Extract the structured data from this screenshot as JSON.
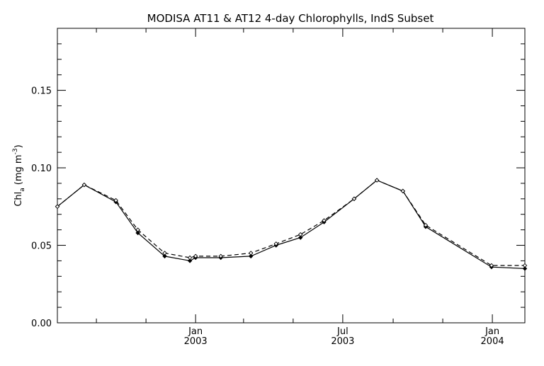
{
  "chart_data": {
    "type": "line",
    "title": "MODISA AT11 & AT12 4-day Chlorophylls, IndS Subset",
    "ylabel": "Chl",
    "ylabel_sub": "a",
    "ylabel_unit": "(mg m",
    "ylabel_sup": "-3",
    "ylabel_close": ")",
    "ylim": [
      0.0,
      0.19
    ],
    "xlim": [
      "2002-07-15",
      "2004-02-10"
    ],
    "grid": false,
    "yticks": [
      {
        "value": 0.0,
        "label": "0.00"
      },
      {
        "value": 0.05,
        "label": "0.05"
      },
      {
        "value": 0.1,
        "label": "0.10"
      },
      {
        "value": 0.15,
        "label": "0.15"
      }
    ],
    "xticks_major": [
      {
        "date": "2003-01-01",
        "month": "Jan",
        "year": "2003"
      },
      {
        "date": "2003-07-01",
        "month": "Jul",
        "year": "2003"
      },
      {
        "date": "2004-01-01",
        "month": "Jan",
        "year": "2004"
      }
    ],
    "xticks_minor": [
      "2002-09-01",
      "2002-11-01",
      "2003-03-01",
      "2003-05-01",
      "2003-09-01",
      "2003-11-01"
    ],
    "series": [
      {
        "style": "solid",
        "color": "#000000",
        "x": [
          "2002-07-15",
          "2002-08-17",
          "2002-09-25",
          "2002-10-22",
          "2002-11-24",
          "2002-12-25",
          "2003-01-01",
          "2003-02-01",
          "2003-03-10",
          "2003-04-10",
          "2003-05-10",
          "2003-06-08",
          "2003-07-15",
          "2003-08-12",
          "2003-09-13",
          "2003-10-11",
          "2003-12-31",
          "2004-02-10"
        ],
        "y": [
          0.075,
          0.089,
          0.078,
          0.058,
          0.043,
          0.04,
          0.042,
          0.042,
          0.043,
          0.05,
          0.055,
          0.065,
          0.08,
          0.092,
          0.085,
          0.062,
          0.036,
          0.035
        ]
      },
      {
        "style": "dashed",
        "color": "#000000",
        "x": [
          "2002-07-15",
          "2002-08-17",
          "2002-09-25",
          "2002-10-22",
          "2002-11-24",
          "2002-12-25",
          "2003-01-01",
          "2003-02-01",
          "2003-03-10",
          "2003-04-10",
          "2003-05-10",
          "2003-06-08",
          "2003-07-15",
          "2003-08-12",
          "2003-09-13",
          "2003-10-11",
          "2003-12-31",
          "2004-02-10"
        ],
        "y": [
          0.075,
          0.089,
          0.079,
          0.06,
          0.045,
          0.042,
          0.043,
          0.043,
          0.045,
          0.051,
          0.057,
          0.066,
          0.08,
          0.092,
          0.085,
          0.063,
          0.037,
          0.037
        ]
      }
    ]
  }
}
